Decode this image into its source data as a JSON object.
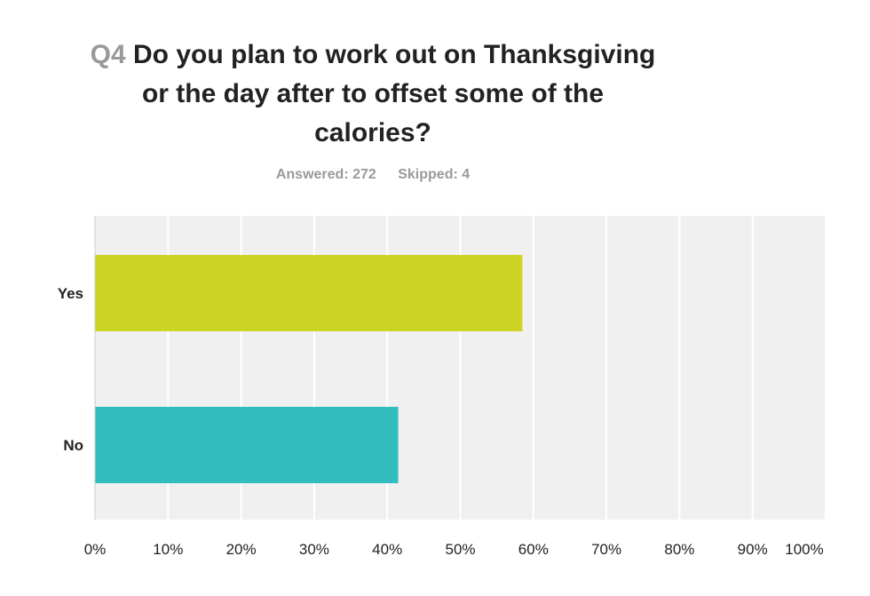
{
  "header": {
    "question_number": "Q4",
    "question_text": "Do you plan to work out on Thanksgiving or the day after to offset some of the calories?",
    "answered": "Answered: 272",
    "skipped": "Skipped: 4"
  },
  "colors": {
    "yes": "#cdd424",
    "no": "#32bdbe",
    "plot_bg": "#f0f0f0",
    "grid": "#ffffff"
  },
  "chart_data": {
    "type": "bar",
    "orientation": "horizontal",
    "categories": [
      "Yes",
      "No"
    ],
    "values": [
      58.5,
      41.5
    ],
    "xlim": [
      0,
      100
    ],
    "xticks": [
      "0%",
      "10%",
      "20%",
      "30%",
      "40%",
      "50%",
      "60%",
      "70%",
      "80%",
      "90%",
      "100%"
    ],
    "grid": true
  }
}
